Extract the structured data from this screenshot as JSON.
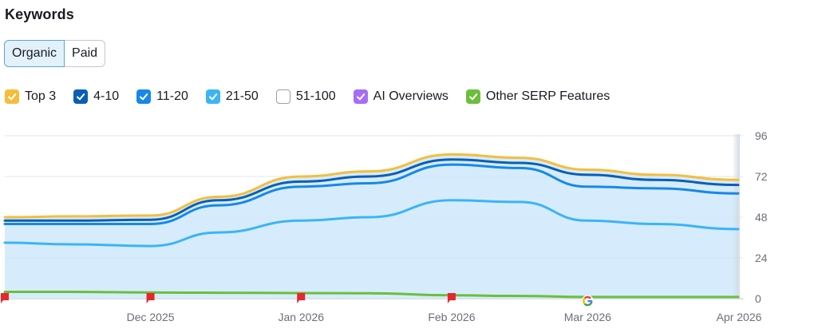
{
  "header": {
    "title": "Keywords"
  },
  "toggle": {
    "organic": "Organic",
    "paid": "Paid",
    "active": "organic"
  },
  "legend": [
    {
      "label": "Top 3",
      "color": "#f5bd3c",
      "checked": true,
      "icon": "check-icon"
    },
    {
      "label": "4-10",
      "color": "#0a5fb4",
      "checked": true,
      "icon": "check-icon"
    },
    {
      "label": "11-20",
      "color": "#1788e8",
      "checked": true,
      "icon": "check-icon"
    },
    {
      "label": "21-50",
      "color": "#3cb4f5",
      "checked": true,
      "icon": "check-icon"
    },
    {
      "label": "51-100",
      "color": "#ffffff",
      "checked": false,
      "icon": ""
    },
    {
      "label": "AI Overviews",
      "color": "#a56ef5",
      "checked": true,
      "icon": "check-icon"
    },
    {
      "label": "Other SERP Features",
      "color": "#6bbf3c",
      "checked": true,
      "icon": "check-icon"
    }
  ],
  "chart_data": {
    "type": "area",
    "x": [
      "2025-11-01",
      "2025-11-15",
      "2025-12-01",
      "2025-12-15",
      "2026-01-01",
      "2026-01-15",
      "2026-02-01",
      "2026-02-15",
      "2026-03-01",
      "2026-03-15",
      "2026-04-01"
    ],
    "x_tick_labels": [
      "Dec 2025",
      "Jan 2026",
      "Feb 2026",
      "Mar 2026",
      "Apr 2026"
    ],
    "y_ticks": [
      0,
      24,
      48,
      72,
      96
    ],
    "ylim": [
      0,
      96
    ],
    "y_axis_position": "right",
    "grid": true,
    "series": [
      {
        "name": "Top 3",
        "color": "#f5bd3c",
        "values": [
          48,
          48.5,
          49,
          60,
          72,
          75,
          85,
          83,
          76,
          73,
          70
        ]
      },
      {
        "name": "4-10",
        "color": "#0a5fb4",
        "values": [
          46,
          46,
          46.5,
          58,
          69,
          72,
          82,
          80,
          73,
          70,
          67
        ]
      },
      {
        "name": "11-20",
        "color": "#1788e8",
        "values": [
          44,
          44,
          44,
          55,
          66,
          68,
          79,
          77,
          66,
          65,
          62
        ]
      },
      {
        "name": "21-50",
        "color": "#3cb4f5",
        "values": [
          33,
          32,
          31,
          39,
          46,
          48,
          58,
          57,
          46,
          44,
          41
        ]
      },
      {
        "name": "Other SERP Features",
        "color": "#6bbf3c",
        "values": [
          4,
          4,
          3.6,
          3.5,
          3.3,
          3.2,
          2,
          1.6,
          1,
          1,
          1
        ]
      }
    ],
    "annotations": [
      {
        "type": "flag",
        "x": "2025-11-01",
        "color": "#e8262b"
      },
      {
        "type": "flag",
        "x": "2025-12-01",
        "color": "#e8262b"
      },
      {
        "type": "flag",
        "x": "2026-01-01",
        "color": "#e8262b"
      },
      {
        "type": "flag",
        "x": "2026-02-01",
        "color": "#e8262b"
      },
      {
        "type": "google-icon",
        "x": "2026-03-01"
      }
    ]
  }
}
